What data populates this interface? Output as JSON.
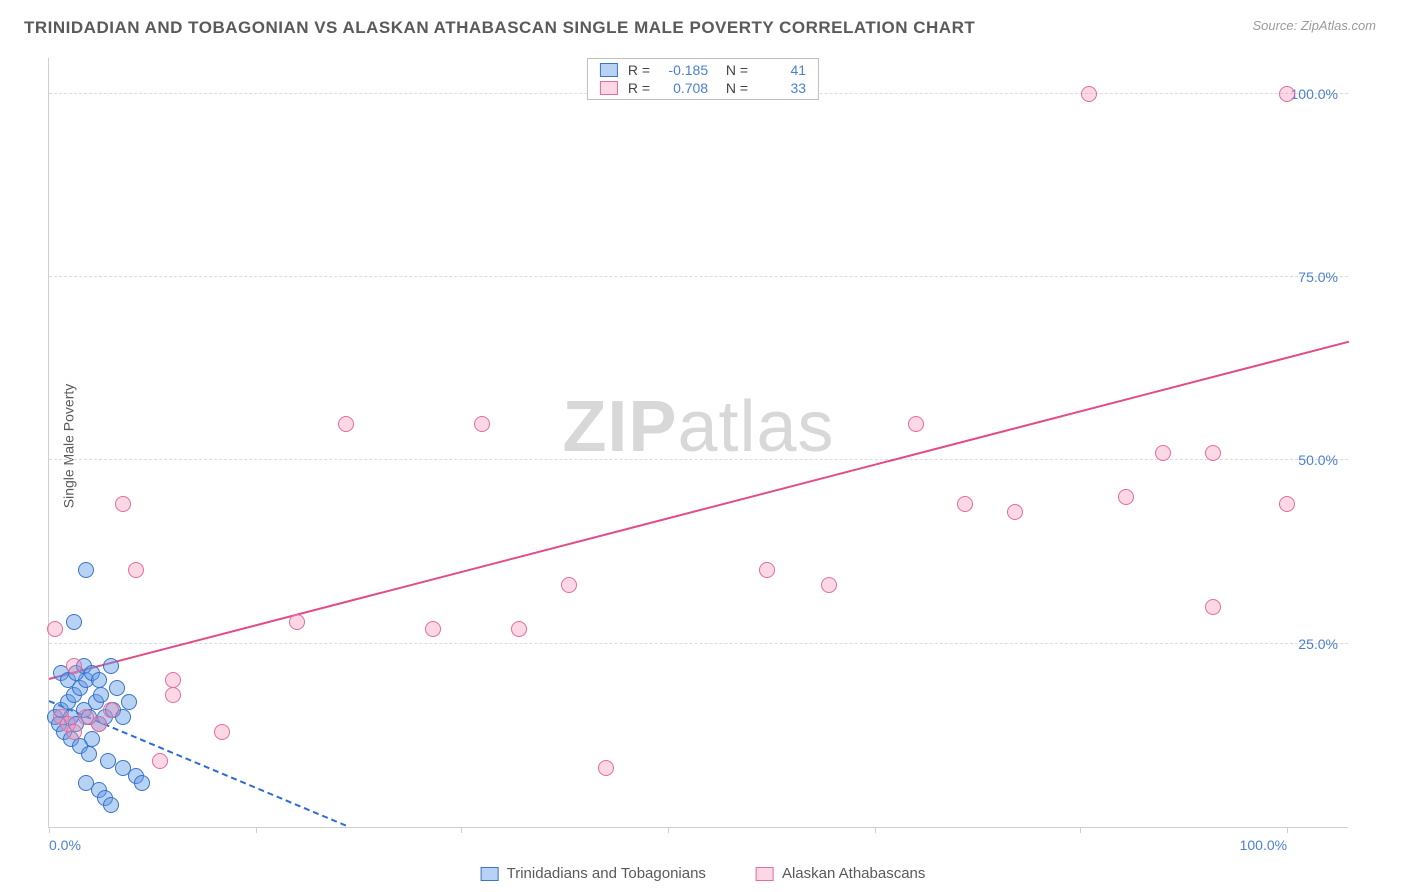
{
  "title": "TRINIDADIAN AND TOBAGONIAN VS ALASKAN ATHABASCAN SINGLE MALE POVERTY CORRELATION CHART",
  "source": "Source: ZipAtlas.com",
  "ylabel": "Single Male Poverty",
  "watermark_zip": "ZIP",
  "watermark_atlas": "atlas",
  "chart": {
    "type": "scatter",
    "xlim": [
      0,
      105
    ],
    "ylim": [
      0,
      105
    ],
    "xtick_labels": {
      "0": "0.0%",
      "100": "100.0%"
    },
    "ytick_labels": {
      "25": "25.0%",
      "50": "50.0%",
      "75": "75.0%",
      "100": "100.0%"
    },
    "xtick_positions": [
      0,
      16.7,
      33.3,
      50,
      66.7,
      83.3,
      100
    ],
    "grid_y_positions": [
      25,
      50,
      75,
      100
    ],
    "grid_color": "#dcdcdc",
    "background_color": "#ffffff",
    "marker_radius": 8,
    "series": [
      {
        "name": "Trinidadians and Tobagonians",
        "fill": "rgba(98,155,230,0.45)",
        "stroke": "#3a74c8",
        "R": "-0.185",
        "N": "41",
        "trend": {
          "x1": 0,
          "y1": 17,
          "x2": 24,
          "y2": 0,
          "color": "#2f6bd0",
          "width": 2,
          "dash": true
        },
        "points": [
          [
            0.5,
            15
          ],
          [
            0.8,
            14
          ],
          [
            1,
            16
          ],
          [
            1.2,
            13
          ],
          [
            1.5,
            17
          ],
          [
            1.8,
            15
          ],
          [
            2,
            18
          ],
          [
            2.2,
            14
          ],
          [
            2.5,
            19
          ],
          [
            2.8,
            16
          ],
          [
            3,
            20
          ],
          [
            3.2,
            15
          ],
          [
            3.5,
            12
          ],
          [
            3.8,
            17
          ],
          [
            4,
            14
          ],
          [
            4.2,
            18
          ],
          [
            4.5,
            15
          ],
          [
            5,
            22
          ],
          [
            5.2,
            16
          ],
          [
            5.5,
            19
          ],
          [
            6,
            15
          ],
          [
            6.5,
            17
          ],
          [
            2,
            28
          ],
          [
            3,
            35
          ],
          [
            6,
            8
          ],
          [
            7,
            7
          ],
          [
            7.5,
            6
          ],
          [
            3,
            6
          ],
          [
            4,
            5
          ],
          [
            4.5,
            4
          ],
          [
            5,
            3
          ],
          [
            1,
            21
          ],
          [
            1.5,
            20
          ],
          [
            2.2,
            21
          ],
          [
            2.8,
            22
          ],
          [
            3.5,
            21
          ],
          [
            4,
            20
          ],
          [
            1.8,
            12
          ],
          [
            2.5,
            11
          ],
          [
            3.2,
            10
          ],
          [
            4.8,
            9
          ]
        ]
      },
      {
        "name": "Alaskan Athabascans",
        "fill": "rgba(244,143,177,0.35)",
        "stroke": "#e76aa0",
        "R": "0.708",
        "N": "33",
        "trend": {
          "x1": 0,
          "y1": 20,
          "x2": 105,
          "y2": 66,
          "color": "#e04d88",
          "width": 2.5,
          "dash": false
        },
        "points": [
          [
            0.5,
            27
          ],
          [
            1,
            15
          ],
          [
            1.5,
            14
          ],
          [
            2,
            13
          ],
          [
            3,
            15
          ],
          [
            4,
            14
          ],
          [
            5,
            16
          ],
          [
            9,
            9
          ],
          [
            10,
            18
          ],
          [
            6,
            44
          ],
          [
            7,
            35
          ],
          [
            10,
            20
          ],
          [
            20,
            28
          ],
          [
            24,
            55
          ],
          [
            35,
            55
          ],
          [
            31,
            27
          ],
          [
            38,
            27
          ],
          [
            42,
            33
          ],
          [
            45,
            8
          ],
          [
            63,
            33
          ],
          [
            70,
            55
          ],
          [
            74,
            44
          ],
          [
            78,
            43
          ],
          [
            84,
            100
          ],
          [
            87,
            45
          ],
          [
            90,
            51
          ],
          [
            94,
            30
          ],
          [
            94,
            51
          ],
          [
            100,
            44
          ],
          [
            100,
            100
          ],
          [
            2,
            22
          ],
          [
            14,
            13
          ],
          [
            58,
            35
          ]
        ]
      }
    ]
  },
  "legend_bottom": [
    {
      "label": "Trinidadians and Tobagonians",
      "series": 0
    },
    {
      "label": "Alaskan Athabascans",
      "series": 1
    }
  ]
}
